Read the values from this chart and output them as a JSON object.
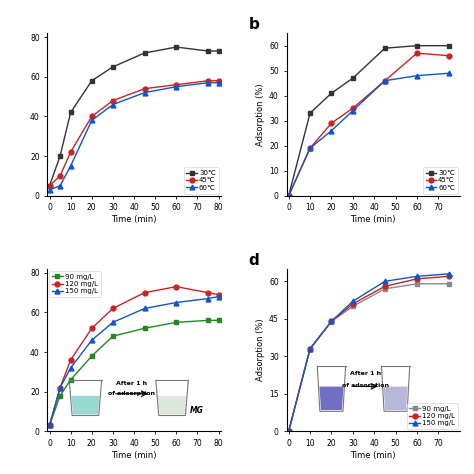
{
  "subplot_a": {
    "time": [
      0,
      5,
      10,
      20,
      30,
      45,
      60,
      75,
      80
    ],
    "30C": [
      5,
      20,
      42,
      58,
      65,
      72,
      75,
      73,
      73
    ],
    "45C": [
      5,
      10,
      22,
      40,
      48,
      54,
      56,
      58,
      58
    ],
    "60C": [
      3,
      5,
      15,
      38,
      46,
      52,
      55,
      57,
      57
    ],
    "ylim": [
      0,
      82
    ],
    "yticks": [
      0,
      20,
      40,
      60,
      80
    ],
    "xlim": [
      -1,
      81
    ],
    "xticks": [
      0,
      10,
      20,
      30,
      40,
      50,
      60,
      70,
      80
    ]
  },
  "subplot_b": {
    "time": [
      0,
      10,
      20,
      30,
      45,
      60,
      75
    ],
    "30C": [
      0,
      33,
      41,
      47,
      59,
      60,
      60
    ],
    "45C": [
      0,
      19,
      29,
      35,
      46,
      57,
      56
    ],
    "60C": [
      0,
      19,
      26,
      34,
      46,
      48,
      49
    ],
    "ylim": [
      0,
      65
    ],
    "yticks": [
      0,
      10,
      20,
      30,
      40,
      50,
      60
    ],
    "xlim": [
      -1,
      80
    ],
    "xticks": [
      0,
      10,
      20,
      30,
      40,
      50,
      60,
      70
    ]
  },
  "subplot_c": {
    "time": [
      0,
      5,
      10,
      20,
      30,
      45,
      60,
      75,
      80
    ],
    "90mgL": [
      3,
      18,
      26,
      38,
      48,
      52,
      55,
      56,
      56
    ],
    "120mgL": [
      3,
      22,
      36,
      52,
      62,
      70,
      73,
      70,
      69
    ],
    "150mgL": [
      3,
      22,
      32,
      46,
      55,
      62,
      65,
      67,
      68
    ],
    "ylim": [
      0,
      82
    ],
    "yticks": [
      0,
      20,
      40,
      60,
      80
    ],
    "xlim": [
      -1,
      81
    ],
    "xticks": [
      0,
      10,
      20,
      30,
      40,
      50,
      60,
      70,
      80
    ]
  },
  "subplot_d": {
    "time": [
      0,
      10,
      20,
      30,
      45,
      60,
      75
    ],
    "90mgL": [
      0,
      33,
      44,
      50,
      57,
      59,
      59
    ],
    "120mgL": [
      0,
      33,
      44,
      51,
      58,
      61,
      62
    ],
    "150mgL": [
      0,
      33,
      44,
      52,
      60,
      62,
      63
    ],
    "ylim": [
      0,
      65
    ],
    "yticks": [
      0,
      15,
      30,
      45,
      60
    ],
    "xlim": [
      -1,
      80
    ],
    "xticks": [
      0,
      10,
      20,
      30,
      40,
      50,
      60,
      70
    ]
  },
  "colors": {
    "black": "#333333",
    "red": "#cc2222",
    "blue": "#1155cc",
    "green": "#228822",
    "gray": "#888888"
  }
}
